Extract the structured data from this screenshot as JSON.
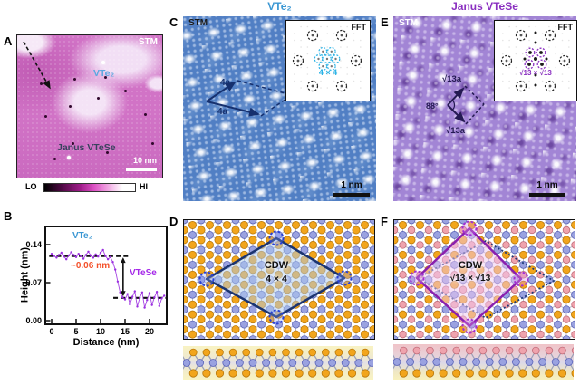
{
  "figure": {
    "panel_a": {
      "label": "A",
      "technique_label": "STM",
      "region_label_top": "VTe₂",
      "region_label_bottom": "Janus VTeSe",
      "scalebar_label": "10 nm",
      "colorbar_low": "LO",
      "colorbar_high": "HI"
    },
    "panel_b": {
      "label": "B"
    },
    "panel_c": {
      "label": "C",
      "title": "VTe₂",
      "technique_label": "STM",
      "fft_label": "FFT",
      "superlattice_label": "4 × 4",
      "vector_label_1": "4a",
      "vector_label_2": "4a",
      "scalebar_label": "1 nm"
    },
    "panel_d": {
      "label": "D",
      "cdw_label": "CDW",
      "period_label": "4 × 4"
    },
    "panel_e": {
      "label": "E",
      "title": "Janus VTeSe",
      "technique_label": "STM",
      "fft_label": "FFT",
      "superlattice_label": "√13 × √13",
      "vector_label_1": "√13a",
      "vector_label_2": "√13a",
      "angle_label": "88°",
      "scalebar_label": "1 nm"
    },
    "panel_f": {
      "label": "F",
      "cdw_label": "CDW",
      "period_label": "√13 × √13"
    }
  },
  "colors": {
    "vte2_accent": "#3b97d3",
    "janus_accent": "#8a2fc0",
    "fft_c_accent": "#29b2e6",
    "fft_e_accent": "#8a2fc0",
    "unit_cell_c": "#16306e",
    "unit_cell_e": "#241a52"
  },
  "chart_data": {
    "type": "line",
    "xlabel": "Distance (nm)",
    "ylabel": "Height (nm)",
    "xlim": [
      -1.3,
      23.5
    ],
    "ylim": [
      -0.025,
      0.175
    ],
    "xticks": [
      0,
      5,
      10,
      15,
      20
    ],
    "yticks": [
      0.14,
      0.07,
      0.0
    ],
    "xticklabels": [
      "0",
      "5",
      "10",
      "15",
      "20"
    ],
    "yticklabels": [
      "0.14",
      "0.07",
      "0.00"
    ],
    "series": [
      {
        "name": "height_profile",
        "color": "#9b30e0",
        "x": [
          0,
          0.5,
          1,
          1.5,
          2,
          2.5,
          3,
          3.5,
          4,
          4.5,
          5,
          5.5,
          6,
          6.5,
          7,
          7.5,
          8,
          8.5,
          9,
          9.5,
          10,
          10.5,
          11,
          11.5,
          12,
          12.5,
          13,
          13.5,
          14,
          14.5,
          15,
          15.5,
          16,
          16.5,
          17,
          17.5,
          18,
          18.5,
          19,
          19.5,
          20,
          20.5,
          21,
          21.5,
          22,
          22.5,
          23
        ],
        "y": [
          0.123,
          0.119,
          0.116,
          0.121,
          0.125,
          0.118,
          0.113,
          0.12,
          0.126,
          0.121,
          0.117,
          0.123,
          0.119,
          0.114,
          0.121,
          0.127,
          0.12,
          0.116,
          0.122,
          0.118,
          0.125,
          0.13,
          0.119,
          0.113,
          0.117,
          0.108,
          0.094,
          0.072,
          0.052,
          0.043,
          0.039,
          0.049,
          0.03,
          0.044,
          0.054,
          0.026,
          0.042,
          0.052,
          0.024,
          0.038,
          0.051,
          0.029,
          0.043,
          0.053,
          0.027,
          0.041,
          0.046
        ]
      }
    ],
    "annotations": {
      "series_label_1": {
        "text": "VTe₂",
        "color": "#3b97d3"
      },
      "series_label_2": {
        "text": "VTeSe",
        "color": "#a428e8"
      },
      "step_label": {
        "text": "~0.06 nm",
        "color": "#f4502a"
      },
      "plateau_lines": [
        {
          "y": 0.119,
          "x1": -0.5,
          "x2": 15.8
        },
        {
          "y": 0.042,
          "x1": 12.6,
          "x2": 23.4
        }
      ],
      "step_arrow": {
        "x": 14.6,
        "y1": 0.119,
        "y2": 0.042
      }
    }
  }
}
